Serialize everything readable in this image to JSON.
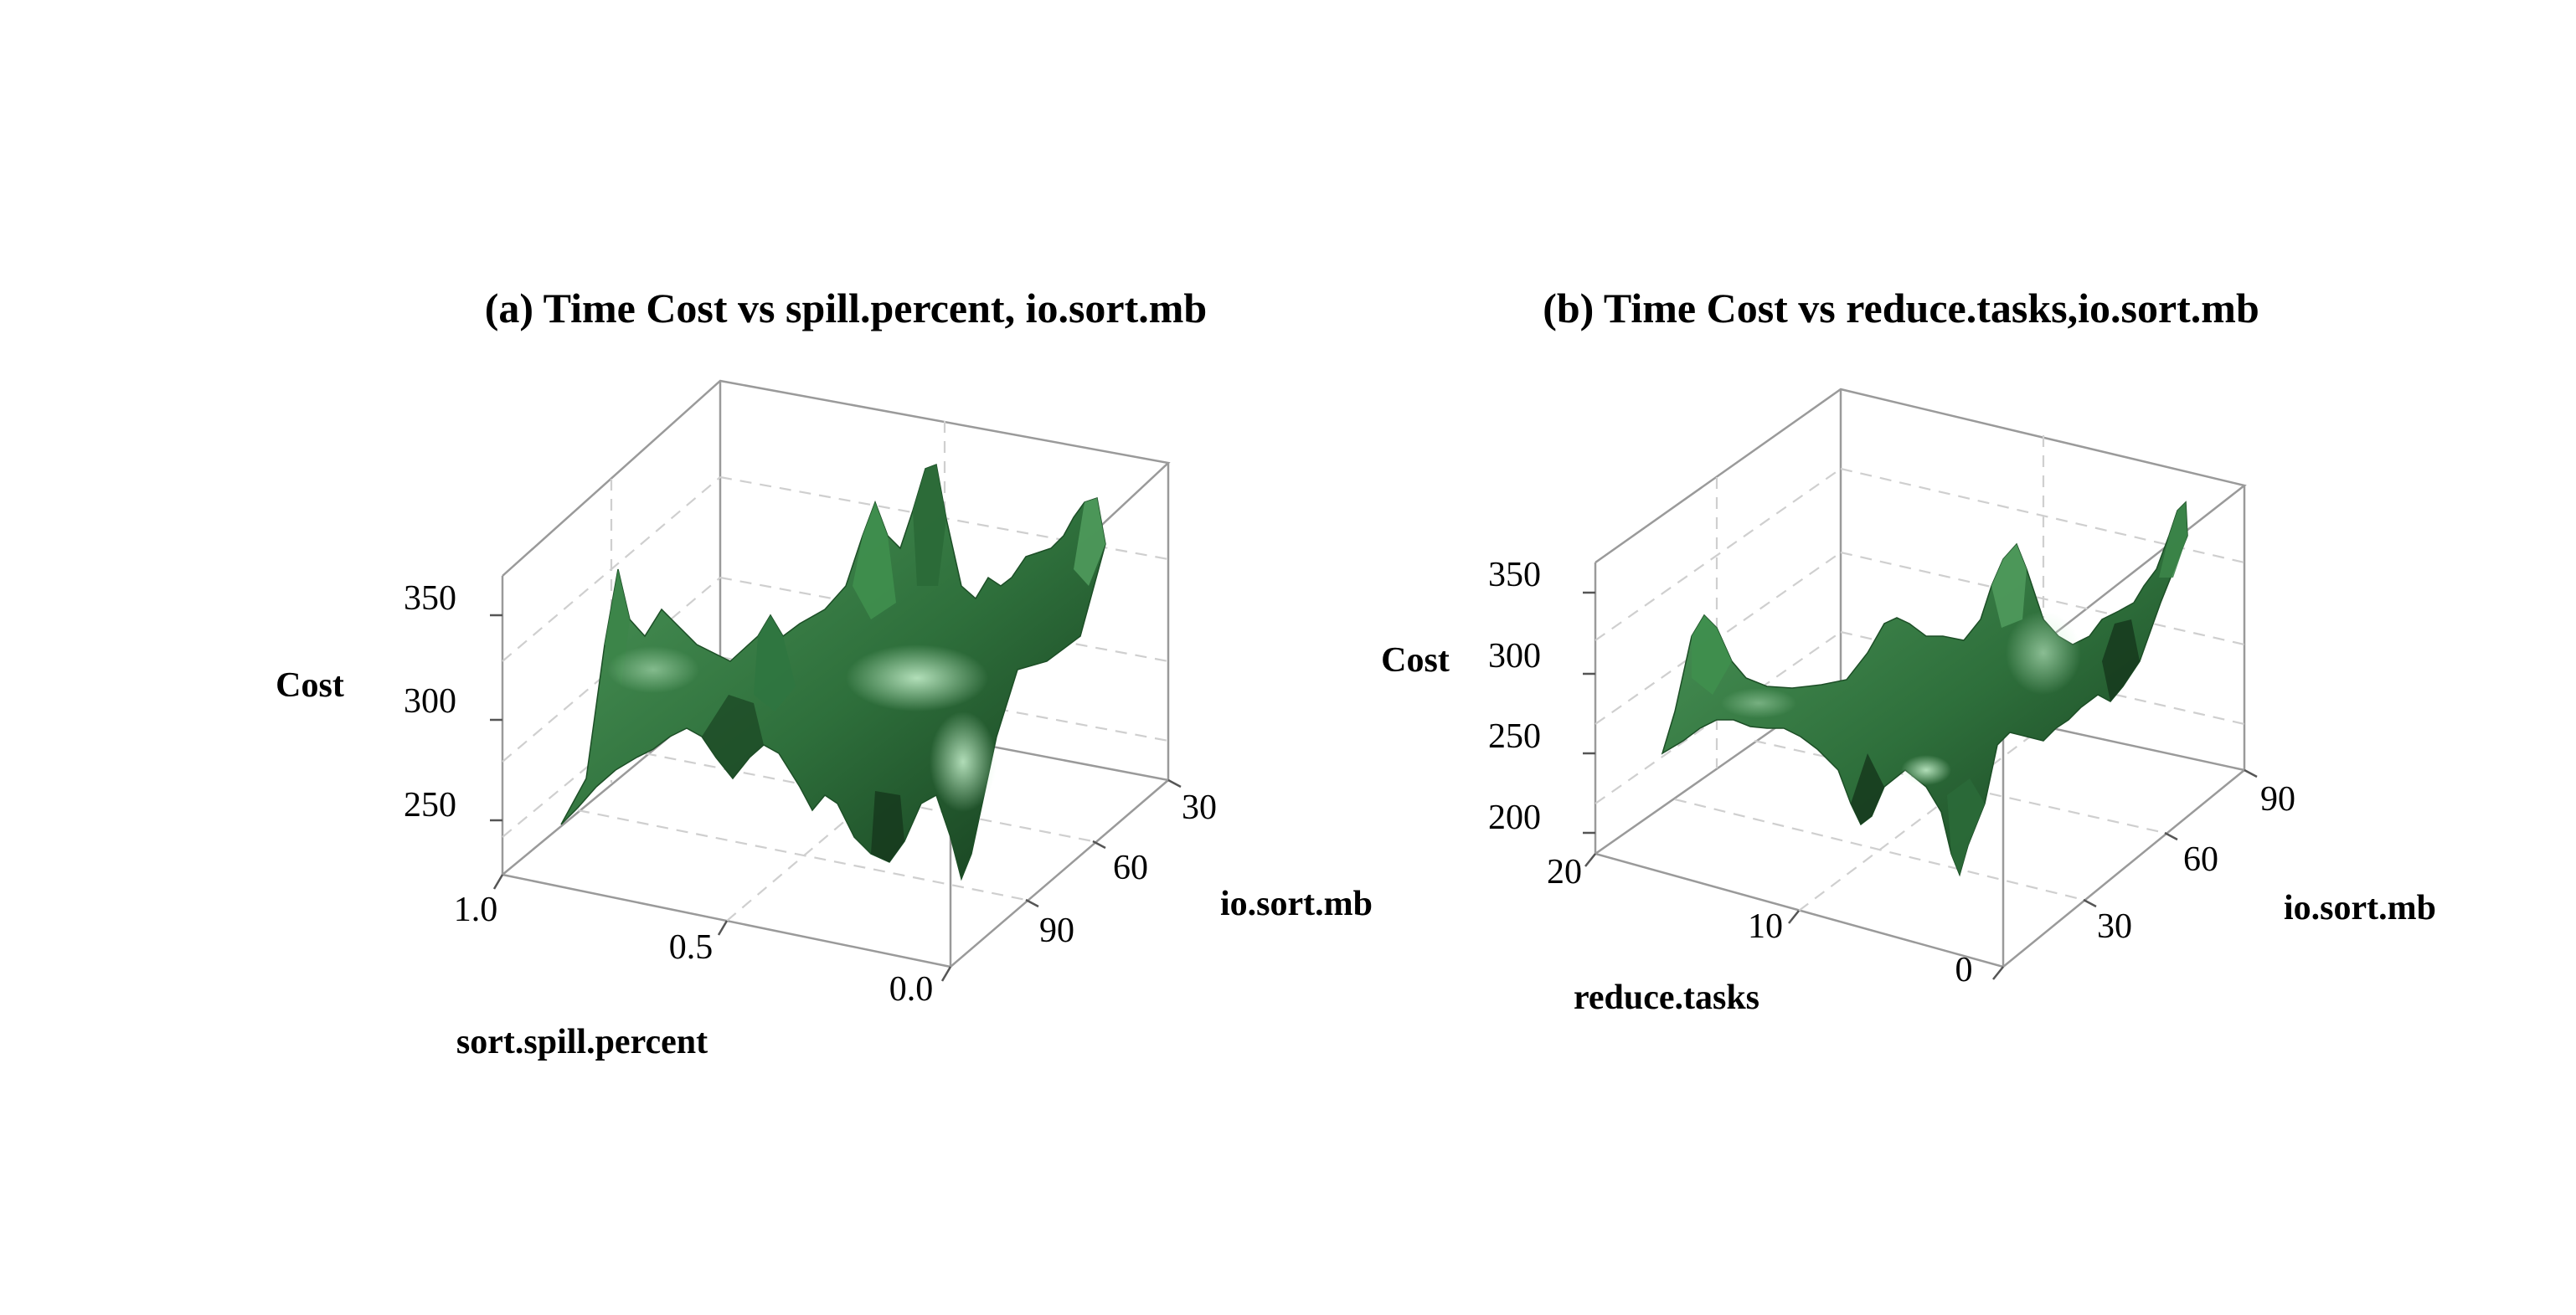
{
  "chart_data": [
    {
      "type": "surface",
      "title": "(a) Time Cost vs spill.percent, io.sort.mb",
      "xlabel": "sort.spill.percent",
      "ylabel": "io.sort.mb",
      "zlabel": "Cost",
      "x_ticks": [
        "1.0",
        "0.5",
        "0.0"
      ],
      "y_ticks": [
        "30",
        "60",
        "90"
      ],
      "z_ticks": [
        "350",
        "300",
        "250"
      ],
      "x_range": [
        1.0,
        0.0
      ],
      "y_range": [
        30,
        90
      ],
      "z_range": [
        220,
        380
      ],
      "grid": true,
      "color": "#3a8a4a",
      "peaks": [
        {
          "x": 0.92,
          "y": 80,
          "z": 352
        },
        {
          "x": 0.55,
          "y": 45,
          "z": 372
        },
        {
          "x": 0.5,
          "y": 82,
          "z": 358
        },
        {
          "x": 0.12,
          "y": 32,
          "z": 368
        },
        {
          "x": 0.08,
          "y": 70,
          "z": 345
        }
      ],
      "valleys": [
        {
          "x": 0.85,
          "y": 88,
          "z": 235
        },
        {
          "x": 0.35,
          "y": 90,
          "z": 228
        },
        {
          "x": 0.2,
          "y": 88,
          "z": 226
        }
      ]
    },
    {
      "type": "surface",
      "title": "(b) Time Cost vs reduce.tasks,io.sort.mb",
      "xlabel": "reduce.tasks",
      "ylabel": "io.sort.mb",
      "zlabel": "Cost",
      "x_ticks": [
        "20",
        "10",
        "0"
      ],
      "y_ticks": [
        "30",
        "60",
        "90"
      ],
      "z_ticks": [
        "350",
        "300",
        "250",
        "200"
      ],
      "x_range": [
        20,
        0
      ],
      "y_range": [
        0,
        100
      ],
      "z_range": [
        190,
        360
      ],
      "grid": true,
      "color": "#3a8a4a",
      "peaks": [
        {
          "x": 17,
          "y": 55,
          "z": 318
        },
        {
          "x": 5,
          "y": 30,
          "z": 320
        },
        {
          "x": 1,
          "y": 92,
          "z": 345
        }
      ],
      "valleys": [
        {
          "x": 12,
          "y": 10,
          "z": 215
        },
        {
          "x": 6,
          "y": 8,
          "z": 200
        }
      ]
    }
  ]
}
